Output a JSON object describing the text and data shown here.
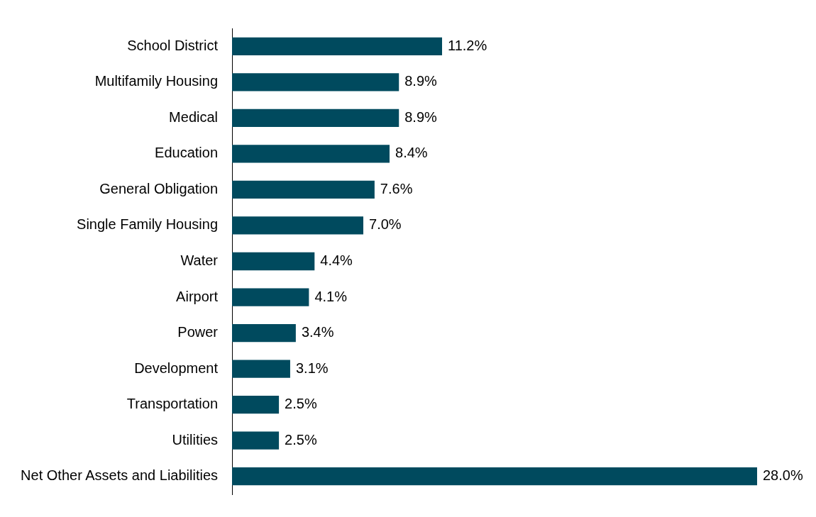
{
  "chart_data": {
    "type": "bar",
    "orientation": "horizontal",
    "categories": [
      "School District",
      "Multifamily Housing",
      "Medical",
      "Education",
      "General Obligation",
      "Single Family Housing",
      "Water",
      "Airport",
      "Power",
      "Development",
      "Transportation",
      "Utilities",
      "Net Other Assets and Liabilities"
    ],
    "values": [
      11.2,
      8.9,
      8.9,
      8.4,
      7.6,
      7.0,
      4.4,
      4.1,
      3.4,
      3.1,
      2.5,
      2.5,
      28.0
    ],
    "value_labels": [
      "11.2%",
      "8.9%",
      "8.9%",
      "8.4%",
      "7.6%",
      "7.0%",
      "4.4%",
      "4.1%",
      "3.4%",
      "3.1%",
      "2.5%",
      "2.5%",
      "28.0%"
    ],
    "color": "#004a5e",
    "xlim": [
      0,
      28
    ],
    "tick_labels": "y"
  }
}
